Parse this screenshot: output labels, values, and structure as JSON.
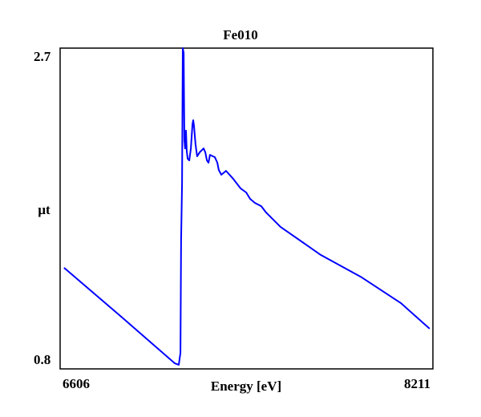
{
  "chart_data": {
    "type": "line",
    "title": "Fe010",
    "xlabel": "Energy [eV]",
    "ylabel": "µt",
    "xlim": [
      6606,
      8211
    ],
    "ylim": [
      0.8,
      2.7
    ],
    "x_tick_labels": [
      "6606",
      "8211"
    ],
    "y_tick_labels": [
      "2.7",
      "0.8"
    ],
    "grid": false,
    "series": [
      {
        "name": "Fe010",
        "color": "#0000ff",
        "x": [
          6623,
          6865,
          7100,
          7117,
          7124,
          7127,
          7131,
          7134,
          7138,
          7141,
          7144,
          7148,
          7151,
          7155,
          7162,
          7169,
          7176,
          7179,
          7182,
          7189,
          7196,
          7207,
          7224,
          7231,
          7238,
          7245,
          7251,
          7272,
          7283,
          7289,
          7300,
          7320,
          7348,
          7383,
          7407,
          7424,
          7445,
          7472,
          7493,
          7555,
          7728,
          7900,
          8073,
          8197
        ],
        "y": [
          1.399,
          1.114,
          0.833,
          0.824,
          0.895,
          1.56,
          1.897,
          2.7,
          2.672,
          2.154,
          2.106,
          2.211,
          2.092,
          2.045,
          2.035,
          2.106,
          2.249,
          2.273,
          2.244,
          2.13,
          2.059,
          2.083,
          2.106,
          2.083,
          2.035,
          2.021,
          2.068,
          2.054,
          2.021,
          1.978,
          1.95,
          1.973,
          1.931,
          1.869,
          1.845,
          1.807,
          1.783,
          1.764,
          1.726,
          1.641,
          1.475,
          1.346,
          1.19,
          1.038
        ]
      }
    ]
  }
}
